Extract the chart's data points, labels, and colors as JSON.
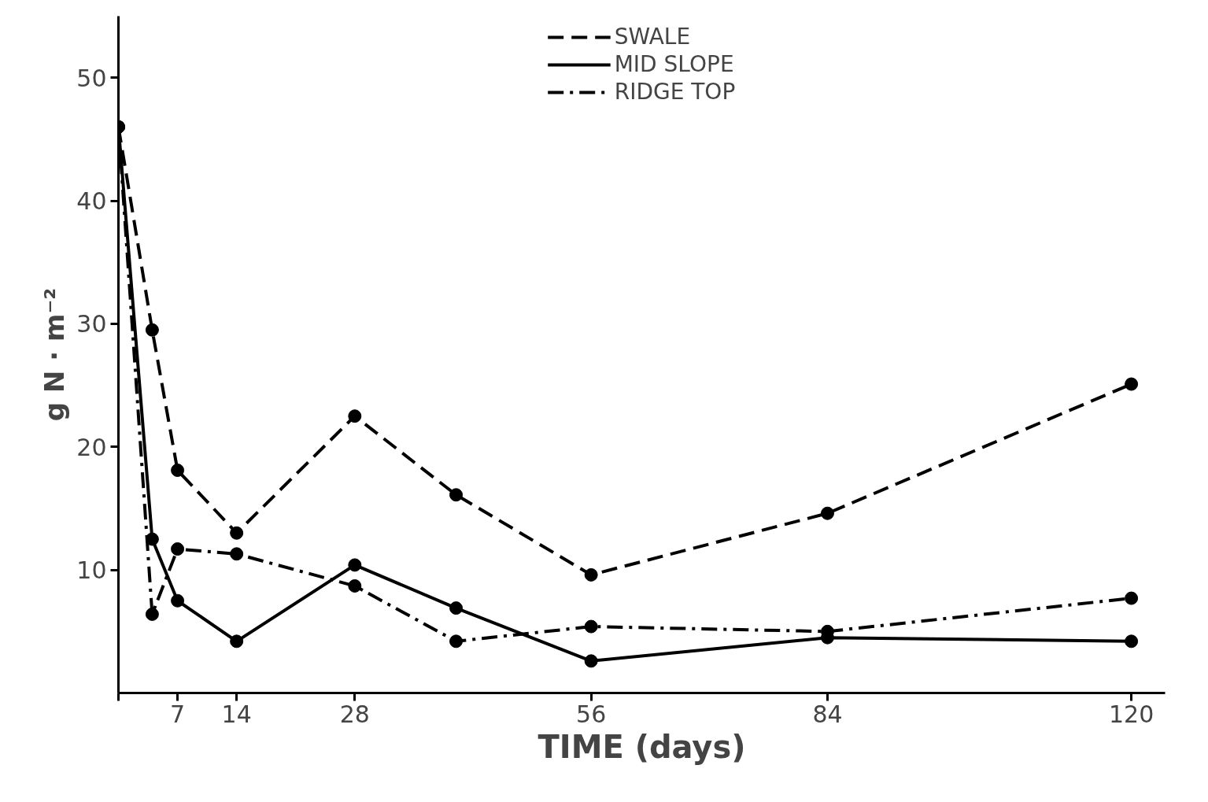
{
  "chart_data": {
    "type": "line",
    "xlabel": "TIME (days)",
    "ylabel": "g N · m⁻²",
    "x": [
      0,
      4,
      7,
      14,
      28,
      40,
      56,
      84,
      120
    ],
    "series": [
      {
        "name": "SWALE",
        "color": "#000000",
        "line_style": "dashed",
        "values": [
          46,
          29.5,
          18.1,
          13.0,
          22.5,
          16.1,
          9.6,
          14.6,
          25.1
        ]
      },
      {
        "name": "MID SLOPE",
        "color": "#000000",
        "line_style": "solid",
        "values": [
          46,
          12.5,
          7.5,
          4.2,
          10.4,
          6.9,
          2.6,
          4.5,
          4.2
        ]
      },
      {
        "name": "RIDGE TOP",
        "color": "#000000",
        "line_style": "dashdot",
        "values": [
          46,
          6.4,
          11.7,
          11.3,
          8.7,
          4.2,
          5.4,
          5.0,
          7.7
        ]
      }
    ],
    "xlim": [
      0,
      124
    ],
    "ylim": [
      0,
      55
    ],
    "xticks": [
      {
        "value": 0,
        "label": null
      },
      7,
      14,
      28,
      56,
      84,
      120
    ],
    "yticks": [
      10,
      20,
      30,
      40,
      50
    ],
    "grid": false,
    "legend": "top",
    "marker": "circle"
  }
}
